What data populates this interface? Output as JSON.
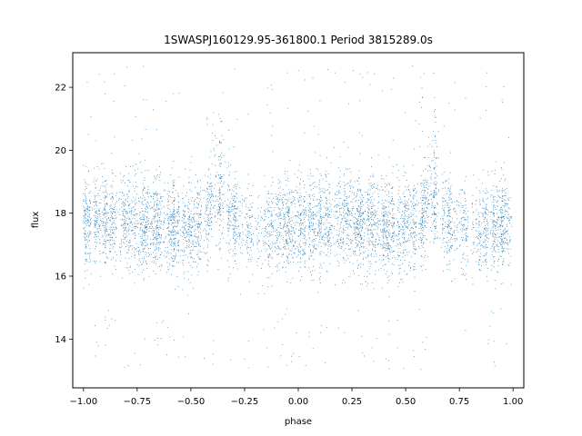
{
  "chart_data": {
    "type": "scatter",
    "title": "1SWASPJ160129.95-361800.1 Period 3815289.0s",
    "xlabel": "phase",
    "ylabel": "flux",
    "xlim": [
      -1.05,
      1.05
    ],
    "ylim": [
      12.45,
      23.1
    ],
    "xticks": [
      -1.0,
      -0.75,
      -0.5,
      -0.25,
      0.0,
      0.25,
      0.5,
      0.75,
      1.0
    ],
    "xtick_labels": [
      "−1.00",
      "−0.75",
      "−0.50",
      "−0.25",
      "0.00",
      "0.25",
      "0.50",
      "0.75",
      "1.00"
    ],
    "yticks": [
      14,
      16,
      18,
      20,
      22
    ],
    "ytick_labels": [
      "14",
      "16",
      "18",
      "20",
      "22"
    ],
    "grid": false,
    "legend": "none",
    "marker_color": "#1f77b4",
    "description_of_shape": "dense phase-folded light curve repeated over two cycles; flux mostly 16-19.5 with peaks near 20.5 at phase -0.37 and 0.63; sparse outliers down to 13 and up to 22.7",
    "typical_range": [
      16.0,
      19.5
    ],
    "peak_phases": [
      -0.37,
      0.63
    ],
    "peak_flux": 20.6
  }
}
